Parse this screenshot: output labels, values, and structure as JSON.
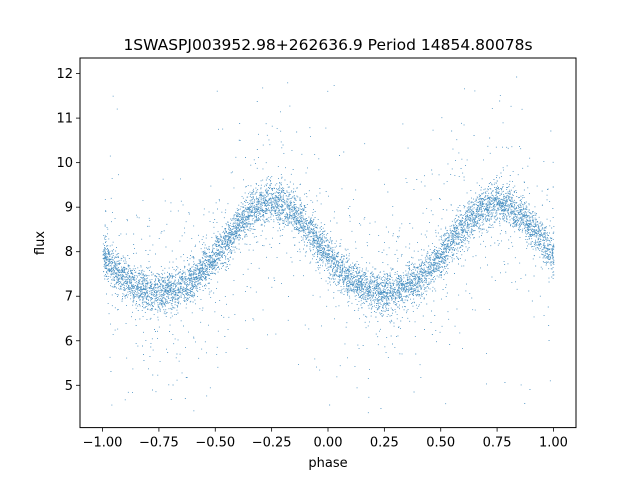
{
  "chart_data": {
    "type": "scatter",
    "title": "1SWASPJ003952.98+262636.9 Period 14854.80078s",
    "xlabel": "phase",
    "ylabel": "flux",
    "xlim": [
      -1.1,
      1.1
    ],
    "ylim": [
      4.05,
      12.35
    ],
    "x_ticks": [
      -1.0,
      -0.75,
      -0.5,
      -0.25,
      0.0,
      0.25,
      0.5,
      0.75,
      1.0
    ],
    "x_tick_labels": [
      "−1.00",
      "−0.75",
      "−0.50",
      "−0.25",
      "0.00",
      "0.25",
      "0.50",
      "0.75",
      "1.00"
    ],
    "y_ticks": [
      5,
      6,
      7,
      8,
      9,
      10,
      11,
      12
    ],
    "y_tick_labels": [
      "5",
      "6",
      "7",
      "8",
      "9",
      "10",
      "11",
      "12"
    ],
    "grid": false,
    "legend": "none",
    "series": [
      {
        "color": "#1f77b4",
        "phase_range": [
          -1.0,
          1.0
        ],
        "model": "flux ≈ 8.0 + 1.0·sin(2π·(phase + 0.5)) − 0.1·cos(4π·phase)",
        "x": [
          -1.0,
          -0.875,
          -0.75,
          -0.625,
          -0.5,
          -0.375,
          -0.25,
          -0.125,
          0.0,
          0.125,
          0.25,
          0.375,
          0.5,
          0.625,
          0.75,
          0.875,
          1.0
        ],
        "y": [
          8.2,
          7.6,
          7.1,
          7.5,
          8.2,
          8.8,
          9.0,
          8.6,
          8.2,
          7.6,
          7.1,
          7.5,
          8.2,
          8.8,
          9.0,
          8.6,
          8.2
        ],
        "band_half_width": 0.4,
        "approx_points": 60000
      }
    ]
  }
}
